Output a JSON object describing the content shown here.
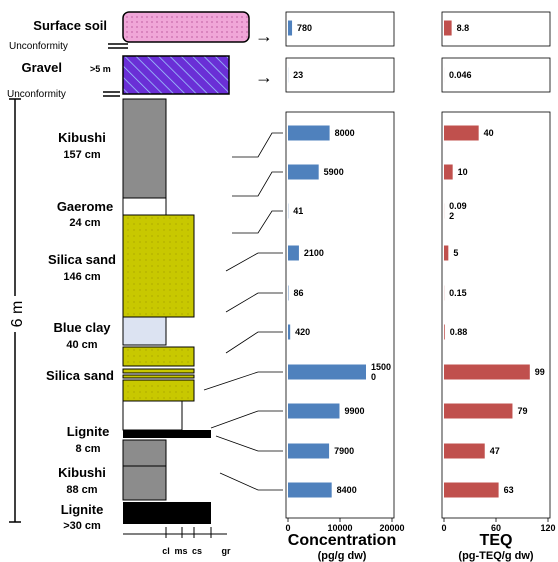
{
  "chart_data": [
    {
      "type": "bar",
      "orientation": "horizontal",
      "title": "",
      "xlabel": "Concentration",
      "xunit": "(pg/g dw)",
      "xlim": [
        0,
        20000
      ],
      "xticks": [
        "0",
        "10000",
        "20000"
      ],
      "color": "#4f81bd",
      "categories": [
        "Surface soil",
        "Gravel",
        "Kibushi",
        "Gaerome",
        "Silica sand",
        "Blue clay",
        "Silica sand",
        "Lignite",
        "Kibushi",
        "Lignite"
      ],
      "values": [
        780,
        23,
        8000,
        5900,
        41,
        2100,
        86,
        420,
        15000,
        9900,
        7900,
        8400
      ],
      "labels": [
        "780",
        "23",
        "8000",
        "5900",
        "41",
        "2100",
        "86",
        "420",
        "1500\n0",
        "9900",
        "7900",
        "8400"
      ]
    },
    {
      "type": "bar",
      "orientation": "horizontal",
      "title": "",
      "xlabel": "TEQ",
      "xunit": "(pg-TEQ/g dw)",
      "xlim": [
        0,
        120
      ],
      "xticks": [
        "0",
        "60",
        "120"
      ],
      "color": "#c0504d",
      "values": [
        8.8,
        0.046,
        40,
        10,
        0.092,
        5,
        0.15,
        0.88,
        99,
        79,
        47,
        63
      ],
      "labels": [
        "8.8",
        "0.046",
        "40",
        "10",
        "0.09\n2",
        "5",
        "0.15",
        "0.88",
        "99",
        "79",
        "47",
        "63"
      ]
    }
  ],
  "column": {
    "surface_soil": "Surface soil",
    "unconformity_1": "Unconformity",
    "gravel": "Gravel",
    "gravel_note": ">5 m",
    "unconformity_2": "Unconformity",
    "kibushi_1": "Kibushi",
    "kibushi_1_thick": "157 cm",
    "gaerome": "Gaerome",
    "gaerome_thick": "24 cm",
    "silica_1": "Silica sand",
    "silica_1_thick": "146 cm",
    "blue_clay": "Blue clay",
    "blue_clay_thick": "40 cm",
    "silica_2": "Silica sand",
    "lignite_1": "Lignite",
    "lignite_1_thick": "8 cm",
    "kibushi_2": "Kibushi",
    "kibushi_2_thick": "88 cm",
    "lignite_2": "Lignite",
    "lignite_2_thick": ">30 cm",
    "scale": "6 m",
    "grain_labels": [
      "cl",
      "ms",
      "cs",
      "gr"
    ],
    "arrows": [
      "→",
      "→"
    ]
  },
  "colors": {
    "concentration_bar": "#4f81bd",
    "teq_bar": "#c0504d",
    "surface_soil_fill": "#f0a6d8",
    "gravel_fill": "#6a2fd6",
    "silica_fill": "#c8c800",
    "blue_clay_fill": "#dce3f2",
    "kibushi_fill": "#8c8c8c"
  }
}
